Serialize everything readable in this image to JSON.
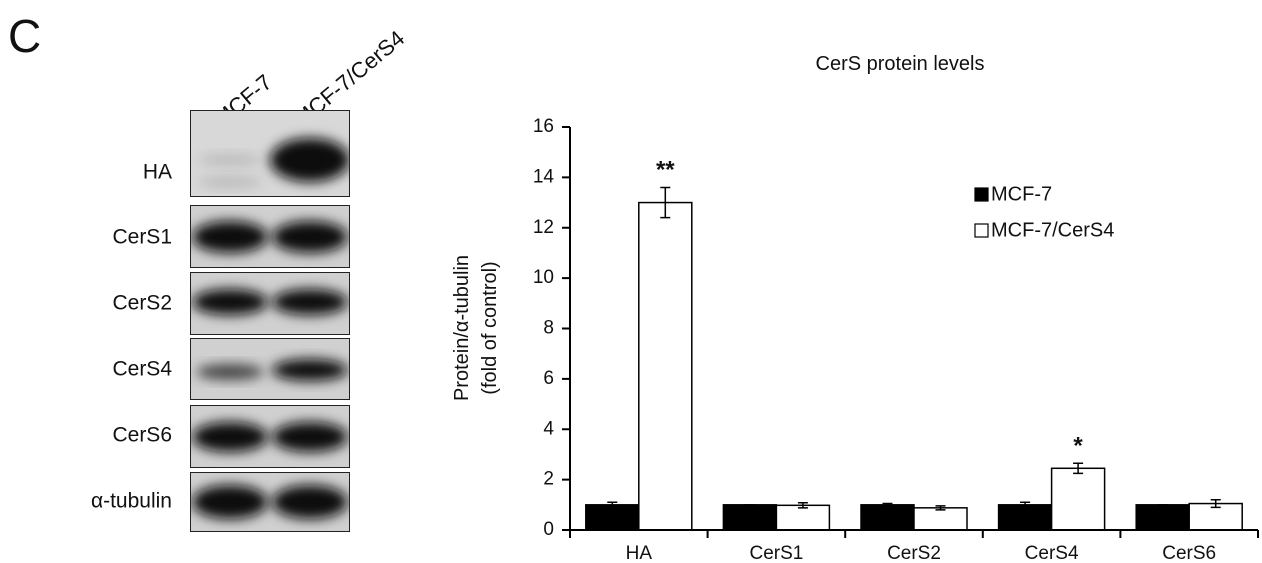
{
  "panel_label": "C",
  "blot": {
    "lanes": [
      "MCF-7",
      "MCF-7/CerS4"
    ],
    "rows": [
      "HA",
      "CerS1",
      "CerS2",
      "CerS4",
      "CerS6",
      "α-tubulin"
    ]
  },
  "chart_data": {
    "type": "bar",
    "title": "CerS protein levels",
    "ylabel": [
      "Protein/α-tubulin",
      "(fold of control)"
    ],
    "categories": [
      "HA",
      "CerS1",
      "CerS2",
      "CerS4",
      "CerS6"
    ],
    "series": [
      {
        "name": "MCF-7",
        "color": "#000000",
        "values": [
          1.0,
          1.0,
          1.0,
          1.0,
          1.0
        ],
        "errors": [
          0.1,
          0,
          0.05,
          0.1,
          0
        ]
      },
      {
        "name": "MCF-7/CerS4",
        "color": "#ffffff",
        "values": [
          13.0,
          0.98,
          0.88,
          2.45,
          1.05
        ],
        "errors": [
          0.6,
          0.1,
          0.08,
          0.2,
          0.15
        ]
      }
    ],
    "annotations": [
      {
        "category": "HA",
        "text": "**"
      },
      {
        "category": "CerS4",
        "text": "*"
      }
    ],
    "ylim": [
      0,
      16
    ],
    "yticks": [
      0,
      2,
      4,
      6,
      8,
      10,
      12,
      14,
      16
    ],
    "grid": false,
    "legend": "upper right"
  }
}
